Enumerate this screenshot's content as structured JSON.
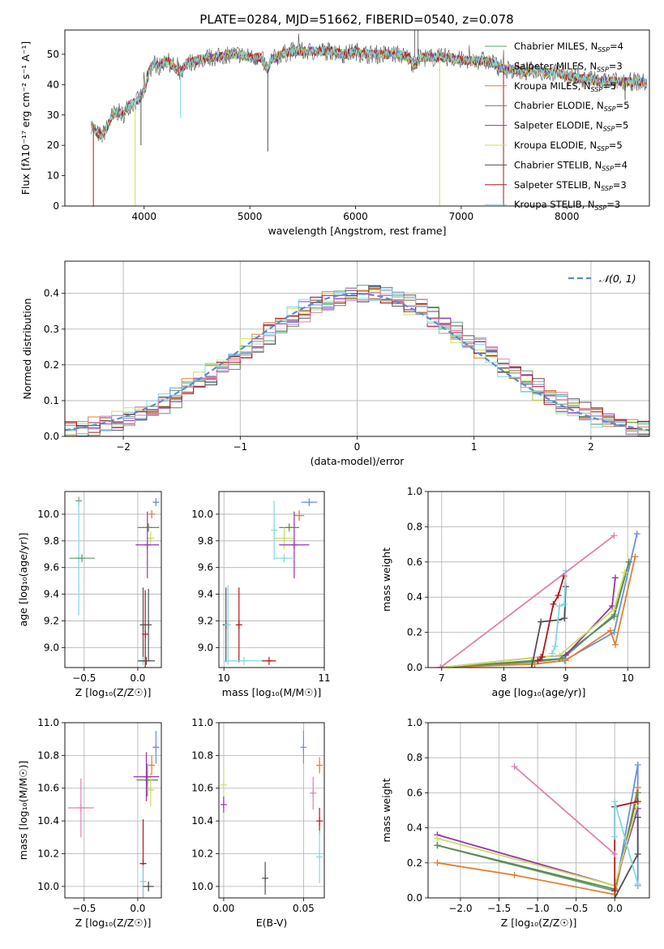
{
  "figure": {
    "title": "PLATE=0284, MJD=51662, FIBERID=0540, z=0.078"
  },
  "models": [
    {
      "name": "Chabrier MILES",
      "nssp": "4",
      "color": "#5f9e6e"
    },
    {
      "name": "Salpeter MILES",
      "nssp": "3",
      "color": "#6890e0"
    },
    {
      "name": "Kroupa MILES",
      "nssp": "5",
      "color": "#e08030"
    },
    {
      "name": "Chabrier ELODIE",
      "nssp": "5",
      "color": "#5a8a50"
    },
    {
      "name": "Salpeter ELODIE",
      "nssp": "5",
      "color": "#9a30b0"
    },
    {
      "name": "Kroupa ELODIE",
      "nssp": "5",
      "color": "#c8e060"
    },
    {
      "name": "Chabrier STELIB",
      "nssp": "4",
      "color": "#505050"
    },
    {
      "name": "Salpeter STELIB",
      "nssp": "3",
      "color": "#b01818"
    },
    {
      "name": "Kroupa STELIB",
      "nssp": "3",
      "color": "#80d8e0"
    }
  ],
  "chart_data": [
    {
      "id": "spectrum",
      "type": "line",
      "xlabel": "wavelength [Angstrom, rest frame]",
      "ylabel": "Flux [fλ10⁻¹⁷ erg cm⁻² s⁻¹ A⁻¹]",
      "xlim": [
        3250,
        8780
      ],
      "ylim": [
        0,
        58
      ],
      "xticks": [
        4000,
        5000,
        6000,
        7000,
        8000
      ],
      "yticks": [
        0,
        10,
        20,
        30,
        40,
        50
      ],
      "grid": false,
      "legend": "top-right",
      "legend_entries": [
        "Chabrier MILES, N_SSP=4",
        "Salpeter MILES, N_SSP=3",
        "Kroupa MILES, N_SSP=5",
        "Chabrier ELODIE, N_SSP=5",
        "Salpeter ELODIE, N_SSP=5",
        "Kroupa ELODIE, N_SSP=5",
        "Chabrier STELIB, N_SSP=4",
        "Salpeter STELIB, N_SSP=3",
        "Kroupa STELIB, N_SSP=3"
      ],
      "spectrum_x": [
        3500,
        3550,
        3600,
        3650,
        3700,
        3750,
        3800,
        3850,
        3900,
        3950,
        4000,
        4050,
        4100,
        4150,
        4200,
        4250,
        4300,
        4350,
        4400,
        4500,
        4600,
        4700,
        4800,
        4900,
        5000,
        5100,
        5170,
        5200,
        5300,
        5400,
        5500,
        5600,
        5700,
        5800,
        5900,
        6000,
        6100,
        6200,
        6300,
        6400,
        6500,
        6563,
        6600,
        6700,
        6800,
        6900,
        7000,
        7100,
        7200,
        7300,
        7400,
        7500,
        7600,
        7700,
        7800,
        7900,
        8000,
        8100,
        8200,
        8300,
        8400,
        8500,
        8600,
        8700,
        8780
      ],
      "spectrum_y": [
        27,
        24,
        23,
        26,
        30,
        31,
        30,
        33,
        34,
        35,
        38,
        45,
        47,
        46,
        48,
        47,
        45,
        44,
        47,
        48,
        49,
        49,
        50,
        50,
        49,
        49,
        45,
        48,
        50,
        51,
        51,
        51,
        51,
        51,
        50,
        51,
        50,
        50,
        50,
        50,
        49,
        46,
        49,
        49,
        49,
        49,
        48,
        48,
        48,
        47,
        45,
        45,
        44,
        45,
        44,
        44,
        43,
        42,
        42,
        41,
        41,
        41,
        41,
        41,
        40
      ],
      "dips": [
        {
          "x": 3520,
          "y": 0,
          "model": 7
        },
        {
          "x": 3915,
          "y": 0,
          "model": 5
        },
        {
          "x": 4345,
          "y": 29,
          "model": 8
        },
        {
          "x": 3970,
          "y": 20,
          "model": 6
        },
        {
          "x": 5170,
          "y": 18,
          "model": 6
        },
        {
          "x": 6795,
          "y": 0,
          "model": 5
        },
        {
          "x": 7400,
          "y": 0,
          "model": 7
        },
        {
          "x": 8550,
          "y": 35,
          "model": 6
        }
      ]
    },
    {
      "id": "residuals",
      "type": "histogram",
      "xlabel": "(data-model)/error",
      "ylabel": "Normed distribution",
      "xlim": [
        -2.5,
        2.5
      ],
      "ylim": [
        0,
        0.49
      ],
      "xticks": [
        -2,
        -1,
        0,
        1,
        2
      ],
      "yticks": [
        0.0,
        0.1,
        0.2,
        0.3,
        0.4
      ],
      "grid": true,
      "legend": "top-right",
      "legend_entry": "𝒩(0, 1)",
      "bin_width": 0.1
    },
    {
      "id": "age_vs_Z",
      "type": "errorbar",
      "xlabel": "Z [log₁₀(Z/Z☉)]",
      "ylabel": "age  [log₁₀(age/yr)]",
      "xlim": [
        -0.68,
        0.22
      ],
      "ylim": [
        8.85,
        10.17
      ],
      "xticks": [
        -0.5,
        0.0
      ],
      "yticks": [
        9.0,
        9.2,
        9.4,
        9.6,
        9.8,
        10.0
      ],
      "grid": true,
      "points": [
        {
          "m": 1,
          "x": 0.17,
          "xe": 0.03,
          "y": 10.09,
          "ye": 0.02
        },
        {
          "m": 2,
          "x": 0.13,
          "xe": 0.02,
          "y": 10.0,
          "ye": 0.03
        },
        {
          "m": 3,
          "x": 0.1,
          "xe": 0.1,
          "y": 9.9,
          "ye": 0.0
        },
        {
          "m": 5,
          "x": 0.12,
          "xe": 0.03,
          "y": 9.82,
          "ye": 0.05
        },
        {
          "m": 4,
          "x": 0.09,
          "xe": 0.11,
          "y": 9.77,
          "ye": 0.25
        },
        {
          "m": 0,
          "x": -0.55,
          "xe": 0.0,
          "y": 10.1,
          "ye": 0.0
        },
        {
          "m": 8,
          "x": -0.55,
          "xe": 0.0,
          "y": 9.67,
          "ye": 0.43
        },
        {
          "m": 0,
          "x": -0.52,
          "xe": 0.12,
          "y": 9.67,
          "ye": 0.0
        },
        {
          "m": 6,
          "x": 0.05,
          "xe": 0.0,
          "y": 9.17,
          "ye": 0.28
        },
        {
          "m": 7,
          "x": 0.07,
          "xe": 0.0,
          "y": 9.1,
          "ye": 0.33
        },
        {
          "m": 6,
          "x": 0.1,
          "xe": 0.0,
          "y": 9.17,
          "ye": 0.27
        },
        {
          "m": 8,
          "x": 0.05,
          "xe": 0.04,
          "y": 8.9,
          "ye": 0.0
        },
        {
          "m": 6,
          "x": 0.08,
          "xe": 0.08,
          "y": 8.9,
          "ye": 0.0
        }
      ]
    },
    {
      "id": "age_vs_mass",
      "type": "errorbar",
      "xlabel": "mass [log₁₀(M/M☉)]",
      "ylabel": "",
      "xlim": [
        9.95,
        11.0
      ],
      "ylim": [
        8.85,
        10.17
      ],
      "xticks": [
        10,
        11
      ],
      "yticks": [
        9.0,
        9.2,
        9.4,
        9.6,
        9.8,
        10.0
      ],
      "grid": true,
      "points": [
        {
          "m": 1,
          "x": 10.85,
          "xe": 0.08,
          "y": 10.09,
          "ye": 0.02
        },
        {
          "m": 2,
          "x": 10.75,
          "xe": 0.05,
          "y": 9.99,
          "ye": 0.04
        },
        {
          "m": 3,
          "x": 10.65,
          "xe": 0.1,
          "y": 9.9,
          "ye": 0.0
        },
        {
          "m": 5,
          "x": 10.6,
          "xe": 0.1,
          "y": 9.82,
          "ye": 0.08
        },
        {
          "m": 4,
          "x": 10.7,
          "xe": 0.15,
          "y": 9.77,
          "ye": 0.25
        },
        {
          "m": 8,
          "x": 10.5,
          "xe": 0.0,
          "y": 9.88,
          "ye": 0.22
        },
        {
          "m": 8,
          "x": 10.6,
          "xe": 0.1,
          "y": 9.67,
          "ye": 0.0
        },
        {
          "m": 6,
          "x": 10.02,
          "xe": 0.0,
          "y": 9.17,
          "ye": 0.28
        },
        {
          "m": 8,
          "x": 10.04,
          "xe": 0.0,
          "y": 9.17,
          "ye": 0.3
        },
        {
          "m": 7,
          "x": 10.15,
          "xe": 0.0,
          "y": 9.17,
          "ye": 0.28
        },
        {
          "m": 8,
          "x": 10.2,
          "xe": 0.2,
          "y": 8.9,
          "ye": 0.0
        },
        {
          "m": 7,
          "x": 10.45,
          "xe": 0.07,
          "y": 8.9,
          "ye": 0.0
        }
      ]
    },
    {
      "id": "weight_vs_age",
      "type": "line",
      "xlabel": "age  [log₁₀(age/yr)]",
      "ylabel": "mass weight",
      "xlim": [
        6.78,
        10.35
      ],
      "ylim": [
        0.0,
        1.0
      ],
      "xticks": [
        7,
        8,
        9,
        10
      ],
      "yticks": [
        0.0,
        0.2,
        0.4,
        0.6,
        0.8,
        1.0
      ],
      "grid": true,
      "series": [
        {
          "m": 0,
          "x": [
            6.98,
            8.45,
            8.95,
            9.78,
            10.02
          ],
          "y": [
            0.0,
            0.03,
            0.05,
            0.3,
            0.6
          ]
        },
        {
          "m": 1,
          "x": [
            8.5,
            8.98,
            9.78,
            10.15
          ],
          "y": [
            0.02,
            0.04,
            0.2,
            0.76
          ]
        },
        {
          "m": 2,
          "x": [
            6.98,
            8.5,
            9.0,
            9.72,
            9.8,
            10.12
          ],
          "y": [
            0.0,
            0.02,
            0.04,
            0.21,
            0.13,
            0.63
          ]
        },
        {
          "m": 3,
          "x": [
            6.98,
            8.9,
            9.78,
            10.02
          ],
          "y": [
            0.0,
            0.05,
            0.29,
            0.6
          ]
        },
        {
          "m": 4,
          "x": [
            6.98,
            8.6,
            9.0,
            9.75,
            9.8
          ],
          "y": [
            0.0,
            0.06,
            0.07,
            0.35,
            0.51
          ]
        },
        {
          "m": 5,
          "x": [
            6.98,
            8.9,
            9.78,
            9.95
          ],
          "y": [
            0.0,
            0.07,
            0.33,
            0.54
          ]
        },
        {
          "m": 6,
          "x": [
            8.45,
            8.6,
            8.88,
            8.98,
            9.0
          ],
          "y": [
            0.0,
            0.26,
            0.27,
            0.28,
            0.46
          ]
        },
        {
          "m": 7,
          "x": [
            8.55,
            8.62,
            8.8,
            8.88,
            8.97
          ],
          "y": [
            0.04,
            0.06,
            0.36,
            0.41,
            0.52
          ]
        },
        {
          "m": 8,
          "x": [
            8.78,
            8.83,
            8.9,
            8.98,
            9.0
          ],
          "y": [
            0.08,
            0.12,
            0.35,
            0.36,
            0.55
          ]
        },
        {
          "m": 9,
          "x": [
            6.98,
            9.78
          ],
          "y": [
            0.0,
            0.75
          ]
        }
      ]
    },
    {
      "id": "mass_vs_Z",
      "type": "errorbar",
      "xlabel": "Z [log₁₀(Z/Z☉)]",
      "ylabel": "mass [log₁₀(M/M☉)]",
      "xlim": [
        -0.68,
        0.22
      ],
      "ylim": [
        9.93,
        11.0
      ],
      "xticks": [
        -0.5,
        0.0
      ],
      "yticks": [
        10.0,
        10.2,
        10.4,
        10.6,
        10.8,
        11.0
      ],
      "grid": true,
      "points": [
        {
          "m": 1,
          "x": 0.17,
          "xe": 0.03,
          "y": 10.85,
          "ye": 0.1
        },
        {
          "m": 2,
          "x": 0.13,
          "xe": 0.02,
          "y": 10.74,
          "ye": 0.06
        },
        {
          "m": 3,
          "x": 0.09,
          "xe": 0.1,
          "y": 10.65,
          "ye": 0.1
        },
        {
          "m": 5,
          "x": 0.12,
          "xe": 0.03,
          "y": 10.59,
          "ye": 0.1
        },
        {
          "m": 4,
          "x": 0.08,
          "xe": 0.12,
          "y": 10.67,
          "ye": 0.15
        },
        {
          "m": 9,
          "x": -0.53,
          "xe": 0.12,
          "y": 10.48,
          "ye": 0.18
        },
        {
          "m": 7,
          "x": 0.05,
          "xe": 0.03,
          "y": 10.14,
          "ye": 0.27
        },
        {
          "m": 8,
          "x": 0.05,
          "xe": 0.03,
          "y": 10.03,
          "ye": 0.1
        },
        {
          "m": 6,
          "x": 0.1,
          "xe": 0.05,
          "y": 10.0,
          "ye": 0.03
        }
      ]
    },
    {
      "id": "mass_vs_ebv",
      "type": "errorbar",
      "xlabel": "E(B-V)",
      "ylabel": "",
      "xlim": [
        -0.003,
        0.063
      ],
      "ylim": [
        9.93,
        11.0
      ],
      "xticks": [
        0.0,
        0.05
      ],
      "yticks": [
        10.0,
        10.2,
        10.4,
        10.6,
        10.8,
        11.0
      ],
      "grid": true,
      "points": [
        {
          "m": 1,
          "x": 0.05,
          "xe": 0.0,
          "y": 10.85,
          "ye": 0.1
        },
        {
          "m": 2,
          "x": 0.06,
          "xe": 0.0,
          "y": 10.74,
          "ye": 0.05
        },
        {
          "m": 9,
          "x": 0.056,
          "xe": 0.0,
          "y": 10.57,
          "ye": 0.1
        },
        {
          "m": 5,
          "x": 0.0,
          "xe": 0.0,
          "y": 10.62,
          "ye": 0.1
        },
        {
          "m": 4,
          "x": 0.0,
          "xe": 0.0,
          "y": 10.5,
          "ye": 0.05
        },
        {
          "m": 7,
          "x": 0.06,
          "xe": 0.0,
          "y": 10.4,
          "ye": 0.08
        },
        {
          "m": 8,
          "x": 0.06,
          "xe": 0.0,
          "y": 10.18,
          "ye": 0.16
        },
        {
          "m": 6,
          "x": 0.026,
          "xe": 0.0,
          "y": 10.05,
          "ye": 0.1
        }
      ]
    },
    {
      "id": "weight_vs_Z",
      "type": "line",
      "xlabel": "Z [log₁₀(Z/Z☉)]",
      "ylabel": "mass weight",
      "xlim": [
        -2.42,
        0.45
      ],
      "ylim": [
        0.0,
        1.0
      ],
      "xticks": [
        -2.0,
        -1.5,
        -1.0,
        -0.5,
        0.0
      ],
      "yticks": [
        0.0,
        0.2,
        0.4,
        0.6,
        0.8,
        1.0
      ],
      "grid": true,
      "series": [
        {
          "m": 0,
          "x": [
            -2.3,
            0.0,
            0.3
          ],
          "y": [
            0.3,
            0.04,
            0.6
          ]
        },
        {
          "m": 1,
          "x": [
            0.0,
            0.3,
            0.3
          ],
          "y": [
            0.02,
            0.76,
            0.07
          ]
        },
        {
          "m": 2,
          "x": [
            -2.3,
            -1.3,
            0.0,
            0.3
          ],
          "y": [
            0.2,
            0.13,
            0.02,
            0.63
          ]
        },
        {
          "m": 3,
          "x": [
            -2.3,
            0.0,
            0.3
          ],
          "y": [
            0.3,
            0.05,
            0.6
          ]
        },
        {
          "m": 4,
          "x": [
            -2.3,
            0.0,
            0.3
          ],
          "y": [
            0.36,
            0.07,
            0.51
          ]
        },
        {
          "m": 5,
          "x": [
            -2.3,
            0.0,
            0.3
          ],
          "y": [
            0.34,
            0.07,
            0.54
          ]
        },
        {
          "m": 6,
          "x": [
            0.0,
            0.3,
            0.3
          ],
          "y": [
            0.0,
            0.25,
            0.46
          ]
        },
        {
          "m": 7,
          "x": [
            0.0,
            0.0,
            0.3
          ],
          "y": [
            0.04,
            0.52,
            0.55
          ]
        },
        {
          "m": 8,
          "x": [
            0.0,
            0.0,
            0.3
          ],
          "y": [
            0.35,
            0.55,
            0.08
          ]
        },
        {
          "m": 9,
          "x": [
            -1.3,
            0.0
          ],
          "y": [
            0.75,
            0.25
          ]
        }
      ]
    }
  ]
}
